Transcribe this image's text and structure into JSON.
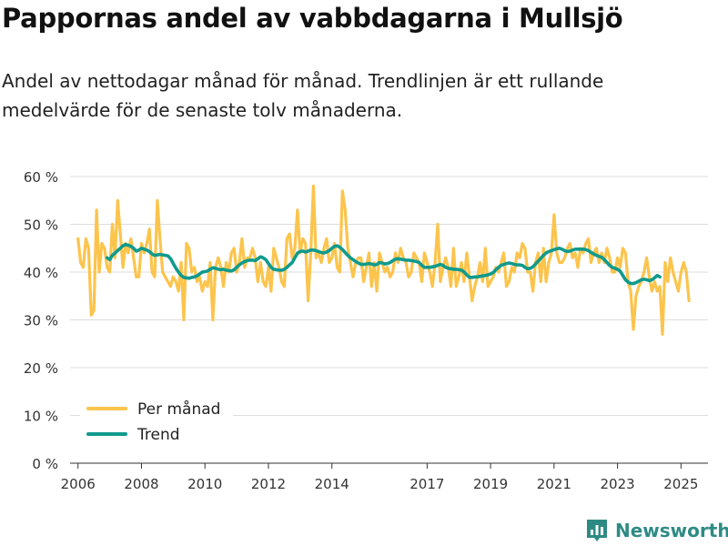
{
  "title": "Pappornas andel av vabbdagarna i Mullsjö",
  "subtitle": "Andel av nettodagar månad för månad. Trendlinjen är ett rullande medelvärde för de senaste tolv månaderna.",
  "brand": {
    "name": "Newsworthy"
  },
  "colors": {
    "monthly": "#fcc44c",
    "trend": "#109a8c",
    "grid": "#dddddd",
    "axis": "#333333"
  },
  "chart_data": {
    "type": "line",
    "ylim": [
      0,
      60
    ],
    "xlim": [
      2005.75,
      2025.85
    ],
    "yticks": [
      0,
      10,
      20,
      30,
      40,
      50,
      60
    ],
    "ytick_labels": [
      "0 %",
      "10 %",
      "20 %",
      "30 %",
      "40 %",
      "50 %",
      "60 %"
    ],
    "xticks": [
      2006,
      2008,
      2010,
      2012,
      2014,
      2017,
      2019,
      2021,
      2023,
      2025
    ],
    "xtick_labels": [
      "2006",
      "2008",
      "2010",
      "2012",
      "2014",
      "2017",
      "2019",
      "2021",
      "2023",
      "2025"
    ],
    "legend_position": "bottom-left",
    "series": [
      {
        "name": "Per månad",
        "x_start": 2006.0,
        "x_step": 0.0833333,
        "values": [
          47,
          42,
          41,
          47,
          45,
          31,
          32,
          53,
          40,
          46,
          45,
          41,
          40,
          50,
          43,
          55,
          48,
          41,
          46,
          44,
          47,
          43,
          39,
          39,
          46,
          44,
          46,
          49,
          40,
          39,
          55,
          47,
          40,
          39,
          38,
          37,
          39,
          38,
          36,
          42,
          30,
          46,
          45,
          40,
          41,
          38,
          39,
          36,
          38,
          37,
          42,
          30,
          41,
          43,
          41,
          37,
          42,
          40,
          44,
          45,
          40,
          42,
          47,
          41,
          43,
          43,
          45,
          43,
          38,
          42,
          38,
          37,
          41,
          36,
          45,
          43,
          41,
          38,
          37,
          47,
          48,
          43,
          45,
          53,
          44,
          47,
          46,
          34,
          44,
          58,
          43,
          44,
          42,
          45,
          47,
          42,
          43,
          46,
          41,
          40,
          57,
          53,
          45,
          42,
          39,
          42,
          43,
          43,
          38,
          41,
          44,
          37,
          42,
          36,
          44,
          42,
          40,
          41,
          39,
          40,
          44,
          42,
          45,
          43,
          42,
          39,
          40,
          44,
          43,
          42,
          38,
          44,
          42,
          40,
          37,
          42,
          50,
          38,
          41,
          43,
          41,
          37,
          45,
          37,
          39,
          42,
          38,
          44,
          39,
          34,
          37,
          39,
          42,
          38,
          45,
          37,
          38,
          39,
          41,
          40,
          42,
          44,
          37,
          38,
          41,
          40,
          44,
          43,
          46,
          45,
          40,
          40,
          36,
          42,
          44,
          38,
          45,
          38,
          42,
          44,
          52,
          44,
          42,
          42,
          43,
          45,
          46,
          43,
          44,
          41,
          45,
          44,
          46,
          47,
          42,
          44,
          45,
          42,
          44,
          42,
          45,
          43,
          40,
          40,
          43,
          41,
          45,
          44,
          38,
          36,
          28,
          35,
          37,
          38,
          40,
          43,
          39,
          36,
          38,
          36,
          37,
          27,
          42,
          38,
          43,
          40,
          38,
          36,
          40,
          42,
          40,
          34
        ]
      },
      {
        "name": "Trend",
        "x_start": 2006.917,
        "x_step": 0.0833333,
        "values": [
          43,
          42.6,
          43.5,
          44,
          44.5,
          45,
          45.5,
          45.8,
          45.6,
          45.4,
          45,
          44.4,
          44.6,
          45,
          44.8,
          44.6,
          44.3,
          43.8,
          43.5,
          43.6,
          43.7,
          43.6,
          43.5,
          43.4,
          42.8,
          41.8,
          40.8,
          40,
          39.3,
          38.9,
          38.8,
          38.7,
          38.9,
          39,
          39.2,
          39.6,
          40,
          40.1,
          40.2,
          40.6,
          40.9,
          40.8,
          40.6,
          40.5,
          40.6,
          40.4,
          40.3,
          40.2,
          40.5,
          41,
          41.5,
          41.9,
          42.2,
          42.4,
          42.5,
          42.5,
          42.4,
          42.8,
          43.2,
          43,
          42.6,
          41.8,
          41,
          40.6,
          40.5,
          40.4,
          40.4,
          40.6,
          41,
          41.5,
          42,
          43,
          44,
          44.3,
          44.4,
          44.2,
          44.4,
          44.6,
          44.6,
          44.5,
          44.3,
          44.1,
          44,
          44.2,
          44.5,
          45,
          45.4,
          45.5,
          45.2,
          44.7,
          44.1,
          43.5,
          43,
          42.6,
          42.2,
          41.9,
          41.6,
          41.6,
          41.7,
          41.8,
          41.7,
          41.5,
          41.6,
          42,
          41.9,
          41.7,
          41.8,
          42,
          42.4,
          42.7,
          42.8,
          42.7,
          42.6,
          42.5,
          42.5,
          42.4,
          42.3,
          42.2,
          42,
          41.4,
          41,
          41,
          41,
          41.1,
          41.2,
          41.4,
          41.6,
          41.4,
          41,
          40.8,
          40.7,
          40.6,
          40.6,
          40.5,
          40.4,
          40,
          39.4,
          38.9,
          38.9,
          39,
          39,
          39.1,
          39.2,
          39.3,
          39.4,
          39.6,
          39.9,
          40.5,
          41,
          41.4,
          41.6,
          41.8,
          41.9,
          41.8,
          41.6,
          41.5,
          41.5,
          41.4,
          41,
          40.7,
          40.8,
          41.1,
          41.7,
          42.3,
          42.9,
          43.5,
          44,
          44.3,
          44.5,
          44.7,
          44.9,
          45,
          44.8,
          44.5,
          44.3,
          44.4,
          44.6,
          44.8,
          44.8,
          44.8,
          44.8,
          44.7,
          44.5,
          44.1,
          43.8,
          43.5,
          43.3,
          43.1,
          42.6,
          42,
          41.4,
          41,
          40.8,
          40.6,
          40.2,
          39.3,
          38.4,
          37.9,
          37.6,
          37.6,
          37.8,
          38.1,
          38.4,
          38.5,
          38.4,
          38.2,
          38.4,
          38.8,
          39.3,
          39
        ]
      }
    ]
  }
}
